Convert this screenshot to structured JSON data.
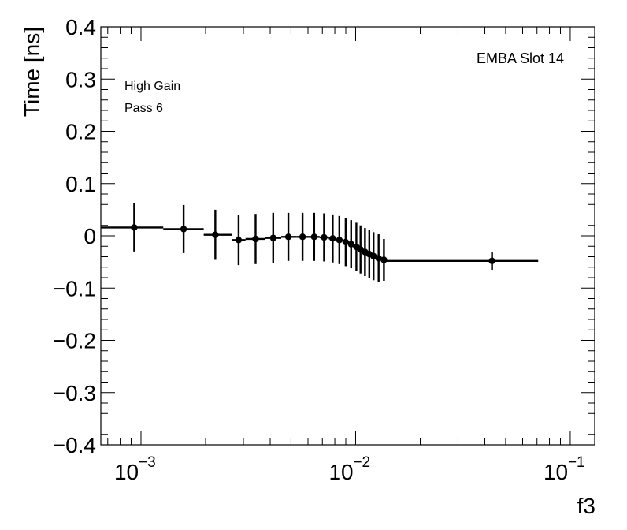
{
  "chart_data": {
    "type": "scatter",
    "xlabel": "f3",
    "ylabel": "Time [ns]",
    "x_scale": "log",
    "xlim": [
      0.00065,
      0.13
    ],
    "ylim": [
      -0.4,
      0.4
    ],
    "grid": false,
    "annotations": {
      "top_right": "EMBA Slot 14",
      "line1": "High Gain",
      "line2": "Pass 6"
    },
    "x_tick_labels": [
      {
        "base": "10",
        "exp": "−3",
        "value": 0.001
      },
      {
        "base": "10",
        "exp": "−2",
        "value": 0.01
      },
      {
        "base": "10",
        "exp": "−1",
        "value": 0.1
      }
    ],
    "y_tick_labels": [
      {
        "text": "−0.4",
        "value": -0.4
      },
      {
        "text": "−0.3",
        "value": -0.3
      },
      {
        "text": "−0.2",
        "value": -0.2
      },
      {
        "text": "−0.1",
        "value": -0.1
      },
      {
        "text": "0",
        "value": 0.0
      },
      {
        "text": "0.1",
        "value": 0.1
      },
      {
        "text": "0.2",
        "value": 0.2
      },
      {
        "text": "0.3",
        "value": 0.3
      },
      {
        "text": "0.4",
        "value": 0.4
      }
    ],
    "points": [
      {
        "x": 0.00093,
        "y": 0.016,
        "yerr": 0.046,
        "xlo": 0.00065,
        "xhi": 0.00127
      },
      {
        "x": 0.00158,
        "y": 0.013,
        "yerr": 0.046,
        "xlo": 0.00127,
        "xhi": 0.00196
      },
      {
        "x": 0.00222,
        "y": 0.002,
        "yerr": 0.048,
        "xlo": 0.00196,
        "xhi": 0.00265
      },
      {
        "x": 0.00285,
        "y": -0.008,
        "yerr": 0.048,
        "xlo": 0.00265,
        "xhi": 0.00307
      },
      {
        "x": 0.00342,
        "y": -0.006,
        "yerr": 0.048,
        "xlo": 0.00307,
        "xhi": 0.0038
      },
      {
        "x": 0.00413,
        "y": -0.004,
        "yerr": 0.048,
        "xlo": 0.0038,
        "xhi": 0.0045
      },
      {
        "x": 0.00486,
        "y": -0.002,
        "yerr": 0.046,
        "xlo": 0.0045,
        "xhi": 0.0053
      },
      {
        "x": 0.00566,
        "y": -0.002,
        "yerr": 0.046,
        "xlo": 0.0053,
        "xhi": 0.0061
      },
      {
        "x": 0.00641,
        "y": -0.002,
        "yerr": 0.046,
        "xlo": 0.0061,
        "xhi": 0.0068
      },
      {
        "x": 0.00713,
        "y": -0.003,
        "yerr": 0.046,
        "xlo": 0.0068,
        "xhi": 0.0075
      },
      {
        "x": 0.00782,
        "y": -0.005,
        "yerr": 0.046,
        "xlo": 0.0075,
        "xhi": 0.0081
      },
      {
        "x": 0.0084,
        "y": -0.008,
        "yerr": 0.046,
        "xlo": 0.0081,
        "xhi": 0.0087
      },
      {
        "x": 0.00899,
        "y": -0.012,
        "yerr": 0.046,
        "xlo": 0.0087,
        "xhi": 0.0093
      },
      {
        "x": 0.00953,
        "y": -0.016,
        "yerr": 0.046,
        "xlo": 0.0093,
        "xhi": 0.0098
      },
      {
        "x": 0.01008,
        "y": -0.021,
        "yerr": 0.046,
        "xlo": 0.0098,
        "xhi": 0.0103
      },
      {
        "x": 0.01054,
        "y": -0.026,
        "yerr": 0.046,
        "xlo": 0.0103,
        "xhi": 0.0108
      },
      {
        "x": 0.01106,
        "y": -0.031,
        "yerr": 0.046,
        "xlo": 0.0108,
        "xhi": 0.0113
      },
      {
        "x": 0.01158,
        "y": -0.035,
        "yerr": 0.046,
        "xlo": 0.0113,
        "xhi": 0.0118
      },
      {
        "x": 0.01212,
        "y": -0.039,
        "yerr": 0.046,
        "xlo": 0.0118,
        "xhi": 0.0124
      },
      {
        "x": 0.0128,
        "y": -0.043,
        "yerr": 0.046,
        "xlo": 0.0124,
        "xhi": 0.0132
      },
      {
        "x": 0.01355,
        "y": -0.046,
        "yerr": 0.04,
        "xlo": 0.0132,
        "xhi": 0.0139
      },
      {
        "x": 0.0432,
        "y": -0.048,
        "yerr": 0.017,
        "xlo": 0.0139,
        "xhi": 0.0709
      }
    ]
  }
}
